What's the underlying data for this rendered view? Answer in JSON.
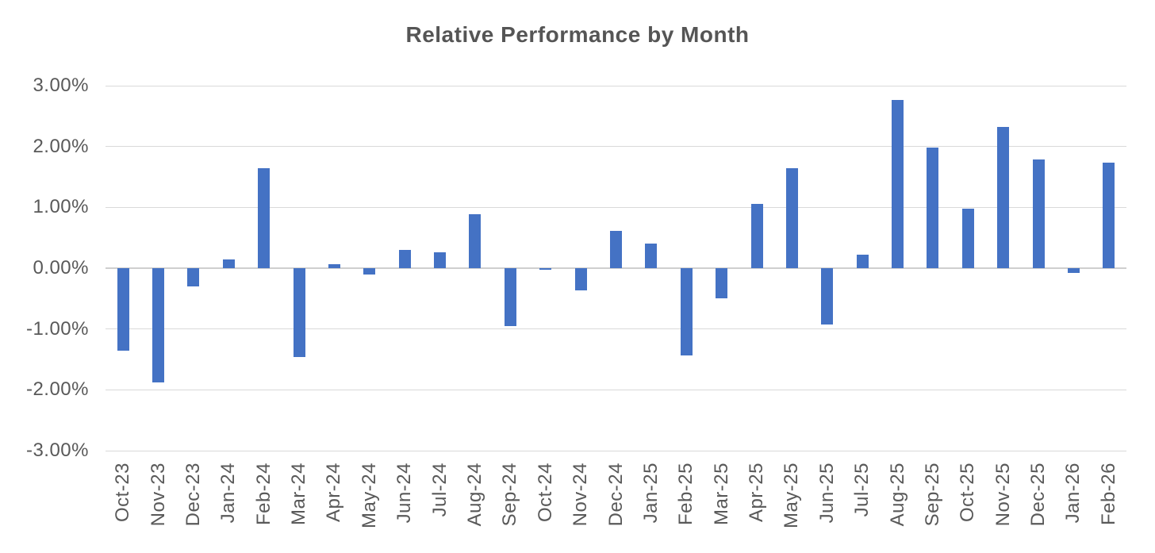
{
  "chart_data": {
    "type": "bar",
    "title": "Relative Performance by Month",
    "unit": "%",
    "categories": [
      "Oct-23",
      "Nov-23",
      "Dec-23",
      "Jan-24",
      "Feb-24",
      "Mar-24",
      "Apr-24",
      "May-24",
      "Jun-24",
      "Jul-24",
      "Aug-24",
      "Sep-24",
      "Oct-24",
      "Nov-24",
      "Dec-24",
      "Jan-25",
      "Feb-25",
      "Mar-25",
      "Apr-25",
      "May-25",
      "Jun-25",
      "Jul-25",
      "Aug-25",
      "Sep-25",
      "Oct-25",
      "Nov-25",
      "Dec-25",
      "Jan-26",
      "Feb-26"
    ],
    "values": [
      -1.36,
      -1.88,
      -0.3,
      0.14,
      1.64,
      -1.46,
      0.07,
      -0.1,
      0.3,
      0.26,
      0.89,
      -0.95,
      -0.03,
      -0.36,
      0.61,
      0.4,
      -1.44,
      -0.49,
      1.06,
      1.64,
      -0.92,
      0.22,
      2.76,
      1.98,
      0.98,
      2.32,
      1.79,
      -0.08,
      1.74
    ],
    "xlabel": "",
    "ylabel": "",
    "ylim": [
      -3,
      3
    ],
    "ytick_step": 1,
    "ytick_labels": [
      "3.00%",
      "2.00%",
      "1.00%",
      "0.00%",
      "-1.00%",
      "-2.00%",
      "-3.00%"
    ],
    "grid": true,
    "legend": "none"
  },
  "colors": {
    "bar": "#4472C4",
    "gridline": "#D9D9D9",
    "axis_line": "#CFCFCF",
    "tick_text": "#595959",
    "title_text": "#555555",
    "background": "#FFFFFF"
  }
}
